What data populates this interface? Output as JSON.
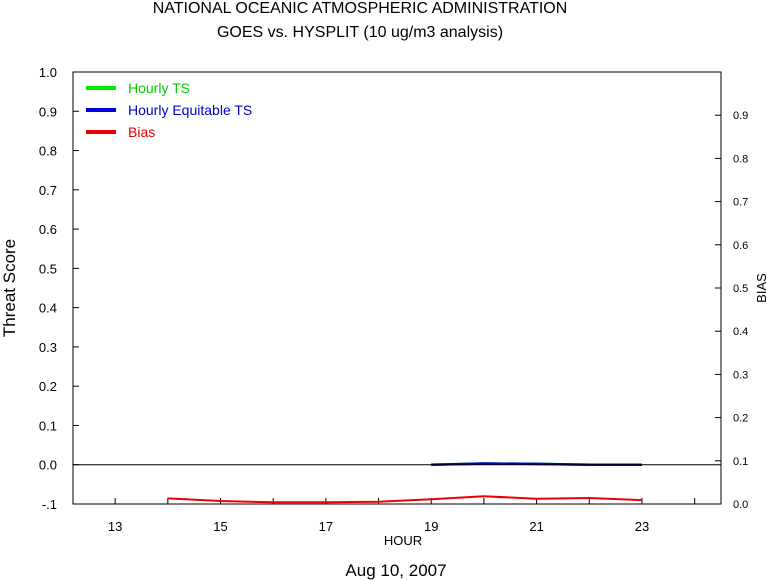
{
  "chart_data": {
    "type": "line",
    "title": "NATIONAL OCEANIC ATMOSPHERIC ADMINISTRATION",
    "subtitle": "GOES vs. HYSPLIT  (10 ug/m3 analysis)",
    "xlabel": "HOUR",
    "ylabel": "Threat Score",
    "y2label": "BIAS",
    "date_label": "Aug 10, 2007",
    "xlim": [
      12.2,
      24.5
    ],
    "ylim": [
      -0.1,
      1.0
    ],
    "y2lim": [
      0.0,
      1.0
    ],
    "x_ticks": [
      13,
      15,
      17,
      19,
      21,
      23
    ],
    "x_tick_labels": [
      "13",
      "15",
      "17",
      "19",
      "21",
      "23"
    ],
    "y_ticks": [
      -0.1,
      0.0,
      0.1,
      0.2,
      0.3,
      0.4,
      0.5,
      0.6,
      0.7,
      0.8,
      0.9,
      1.0
    ],
    "y_tick_labels": [
      "-.1",
      "0.0",
      "0.1",
      "0.2",
      "0.3",
      "0.4",
      "0.5",
      "0.6",
      "0.7",
      "0.8",
      "0.9",
      "1.0"
    ],
    "y2_ticks": [
      0.0,
      0.1,
      0.2,
      0.3,
      0.4,
      0.5,
      0.6,
      0.7,
      0.8,
      0.9
    ],
    "y2_tick_labels": [
      "0.0",
      "0.1",
      "0.2",
      "0.3",
      "0.4",
      "0.5",
      "0.6",
      "0.7",
      "0.8",
      "0.9"
    ],
    "legend_position": "top-left",
    "series": [
      {
        "name": "Hourly TS",
        "color": "#00ee00",
        "axis": "left",
        "x": [
          19,
          20,
          21,
          22,
          23
        ],
        "values": [
          0.0,
          0.003,
          0.002,
          0.0,
          0.0
        ]
      },
      {
        "name": "Hourly Equitable TS",
        "color": "#0000dd",
        "axis": "left",
        "x": [
          19,
          20,
          21,
          22,
          23
        ],
        "values": [
          0.0,
          0.003,
          0.002,
          0.0,
          0.0
        ]
      },
      {
        "name": "Bias",
        "color": "#ee0000",
        "axis": "right",
        "x": [
          14,
          15,
          16,
          17,
          18,
          19,
          20,
          21,
          22,
          23
        ],
        "values": [
          0.013,
          0.007,
          0.004,
          0.004,
          0.005,
          0.011,
          0.018,
          0.012,
          0.014,
          0.009
        ]
      }
    ]
  }
}
